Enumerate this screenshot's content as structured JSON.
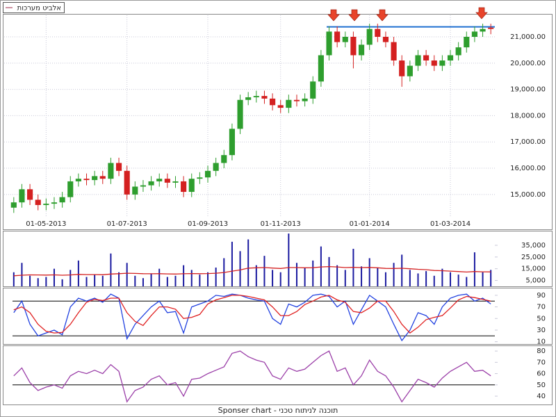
{
  "legend_text": "אלביט מערכות",
  "footer": "Sponser chart - תוכנה לניתוח טכני",
  "chart_data": [
    {
      "type": "candlestick",
      "grid": true,
      "up_color": "#2e9e2e",
      "down_color": "#d42020",
      "resistance": 21380,
      "resistance_color": "#1e6fd0",
      "categories": [
        null,
        null,
        null,
        null,
        "01-05-2013",
        null,
        null,
        null,
        null,
        null,
        null,
        null,
        null,
        null,
        "01-07-2013",
        null,
        null,
        null,
        null,
        null,
        null,
        null,
        null,
        null,
        "01-09-2013",
        null,
        null,
        null,
        null,
        null,
        null,
        null,
        null,
        "01-11-2013",
        null,
        null,
        null,
        null,
        null,
        null,
        null,
        null,
        null,
        null,
        "01-01-2014",
        null,
        null,
        null,
        null,
        null,
        null,
        null,
        null,
        null,
        "01-03-2014",
        null,
        null,
        null,
        null,
        null
      ],
      "open": [
        14500,
        14700,
        15200,
        14800,
        14600,
        14650,
        14700,
        14900,
        15500,
        15600,
        15550,
        15700,
        15600,
        16200,
        15900,
        15000,
        15300,
        15350,
        15500,
        15600,
        15450,
        15500,
        15100,
        15600,
        15650,
        15900,
        16200,
        16500,
        17500,
        18600,
        18700,
        18750,
        18650,
        18400,
        18300,
        18600,
        18550,
        18650,
        19300,
        20300,
        21200,
        20800,
        21000,
        20300,
        20700,
        21300,
        21000,
        20800,
        20100,
        19500,
        19900,
        20300,
        20100,
        19900,
        20100,
        20300,
        20600,
        21000,
        21200,
        21350
      ],
      "high": [
        14900,
        15400,
        15400,
        15000,
        14850,
        14900,
        15100,
        15700,
        15800,
        15800,
        15900,
        15900,
        16400,
        16400,
        16100,
        15500,
        15550,
        15700,
        15800,
        15800,
        15700,
        15700,
        15800,
        15850,
        16100,
        16400,
        16700,
        17700,
        18800,
        18900,
        18950,
        18950,
        18850,
        18600,
        18800,
        18800,
        18850,
        19500,
        20500,
        21400,
        21400,
        21200,
        21200,
        20900,
        21500,
        21500,
        21200,
        21000,
        20300,
        20100,
        20500,
        20500,
        20300,
        20300,
        20500,
        20800,
        21200,
        21400,
        21500,
        21500
      ],
      "low": [
        14300,
        14500,
        14600,
        14400,
        14400,
        14450,
        14500,
        14700,
        15300,
        15350,
        15350,
        15400,
        15400,
        15700,
        14800,
        14800,
        15100,
        15150,
        15300,
        15250,
        15250,
        14900,
        14900,
        15400,
        15450,
        15700,
        16000,
        16300,
        17300,
        18400,
        18500,
        18450,
        18200,
        18100,
        18100,
        18350,
        18350,
        18450,
        19100,
        20100,
        20600,
        20600,
        19800,
        20100,
        20500,
        20800,
        20600,
        19900,
        19100,
        19300,
        19700,
        19900,
        19700,
        19700,
        19900,
        20100,
        20400,
        20800,
        21000,
        21100
      ],
      "close": [
        14700,
        15200,
        14800,
        14600,
        14650,
        14700,
        14900,
        15500,
        15600,
        15550,
        15700,
        15600,
        16200,
        15900,
        15000,
        15300,
        15350,
        15500,
        15600,
        15450,
        15500,
        15100,
        15600,
        15650,
        15900,
        16200,
        16500,
        17500,
        18600,
        18700,
        18750,
        18650,
        18400,
        18300,
        18600,
        18550,
        18650,
        19300,
        20300,
        21200,
        20800,
        21000,
        20300,
        20700,
        21300,
        21000,
        20800,
        20100,
        19500,
        19900,
        20300,
        20100,
        19900,
        20100,
        20300,
        20600,
        21000,
        21200,
        21300,
        21300
      ],
      "ylim": [
        14150,
        21820
      ],
      "yticks": [
        {
          "value": 15000,
          "label": "15,000.00"
        },
        {
          "value": 16000,
          "label": "16,000.00"
        },
        {
          "value": 17000,
          "label": "17,000.00"
        },
        {
          "value": 18000,
          "label": "18,000.00"
        },
        {
          "value": 19000,
          "label": "19,000.00"
        },
        {
          "value": 20000,
          "label": "20,000.00"
        },
        {
          "value": 21000,
          "label": "21,000.00"
        }
      ]
    },
    {
      "type": "bar",
      "ylim": [
        0,
        46800
      ],
      "yticks": [
        {
          "value": 5000,
          "label": "5,000"
        },
        {
          "value": 15000,
          "label": "15,000"
        },
        {
          "value": 25000,
          "label": "25,000"
        },
        {
          "value": 35000,
          "label": "35,000"
        }
      ],
      "series": [
        {
          "style": "bar",
          "color": "#1a1aa0",
          "values": [
            12000,
            20000,
            9000,
            7000,
            8000,
            15000,
            6000,
            14000,
            22000,
            8000,
            10000,
            9000,
            28000,
            12000,
            20000,
            9000,
            7000,
            11000,
            15000,
            8000,
            9000,
            18000,
            14000,
            10000,
            12000,
            16000,
            24000,
            38000,
            30000,
            40000,
            18000,
            26000,
            14000,
            12000,
            45000,
            20000,
            16000,
            22000,
            34000,
            25000,
            18000,
            14000,
            32000,
            17000,
            24000,
            16000,
            12000,
            20000,
            27000,
            14000,
            11000,
            13000,
            9000,
            15000,
            12000,
            10000,
            8000,
            29000,
            12000,
            14000
          ]
        },
        {
          "style": "line",
          "color": "#d42020",
          "values": [
            9000,
            9500,
            9800,
            9700,
            9600,
            9800,
            9500,
            9700,
            10200,
            10000,
            10000,
            9900,
            10500,
            10800,
            11200,
            11000,
            10800,
            10700,
            10800,
            10600,
            10500,
            10700,
            10900,
            10800,
            10900,
            11200,
            11800,
            13000,
            14000,
            15500,
            15800,
            16000,
            15600,
            15200,
            16000,
            16000,
            15800,
            15900,
            16500,
            16800,
            16500,
            16000,
            16200,
            16000,
            16100,
            15800,
            15300,
            15200,
            15400,
            15000,
            14500,
            14200,
            13500,
            13300,
            13000,
            12600,
            12200,
            12600,
            12400,
            12300
          ]
        }
      ]
    },
    {
      "type": "line",
      "ylim": [
        6,
        103
      ],
      "yticks": [
        10,
        30,
        50,
        70,
        90
      ],
      "levels": [
        80,
        20
      ],
      "series": [
        {
          "color": "#2040e0",
          "values": [
            60,
            80,
            40,
            20,
            25,
            30,
            22,
            70,
            85,
            80,
            85,
            78,
            92,
            85,
            15,
            40,
            55,
            70,
            80,
            60,
            62,
            25,
            70,
            75,
            80,
            90,
            88,
            92,
            90,
            85,
            82,
            80,
            50,
            40,
            75,
            70,
            78,
            90,
            92,
            88,
            70,
            80,
            40,
            65,
            90,
            80,
            70,
            40,
            12,
            30,
            60,
            55,
            40,
            70,
            85,
            90,
            92,
            80,
            85,
            75
          ]
        },
        {
          "color": "#e02020",
          "values": [
            65,
            70,
            60,
            40,
            28,
            25,
            26,
            40,
            60,
            78,
            83,
            81,
            85,
            85,
            60,
            45,
            38,
            55,
            70,
            70,
            66,
            50,
            52,
            57,
            75,
            82,
            86,
            90,
            90,
            88,
            85,
            82,
            70,
            55,
            55,
            62,
            74,
            80,
            87,
            90,
            82,
            78,
            62,
            60,
            68,
            80,
            80,
            62,
            40,
            25,
            35,
            48,
            52,
            55,
            68,
            82,
            88,
            86,
            83,
            80
          ]
        }
      ]
    },
    {
      "type": "line",
      "ylim": [
        32.6,
        85
      ],
      "yticks": [
        40,
        50,
        60,
        70,
        80
      ],
      "levels": [
        50
      ],
      "series": [
        {
          "color": "#9b3fa8",
          "values": [
            58,
            65,
            52,
            45,
            48,
            50,
            47,
            58,
            62,
            60,
            63,
            60,
            68,
            62,
            35,
            45,
            48,
            55,
            58,
            50,
            52,
            40,
            55,
            56,
            60,
            63,
            66,
            78,
            80,
            75,
            72,
            70,
            58,
            55,
            65,
            62,
            64,
            70,
            76,
            80,
            62,
            65,
            50,
            58,
            72,
            62,
            58,
            48,
            35,
            45,
            55,
            52,
            48,
            56,
            62,
            66,
            70,
            62,
            63,
            58
          ]
        }
      ]
    }
  ]
}
